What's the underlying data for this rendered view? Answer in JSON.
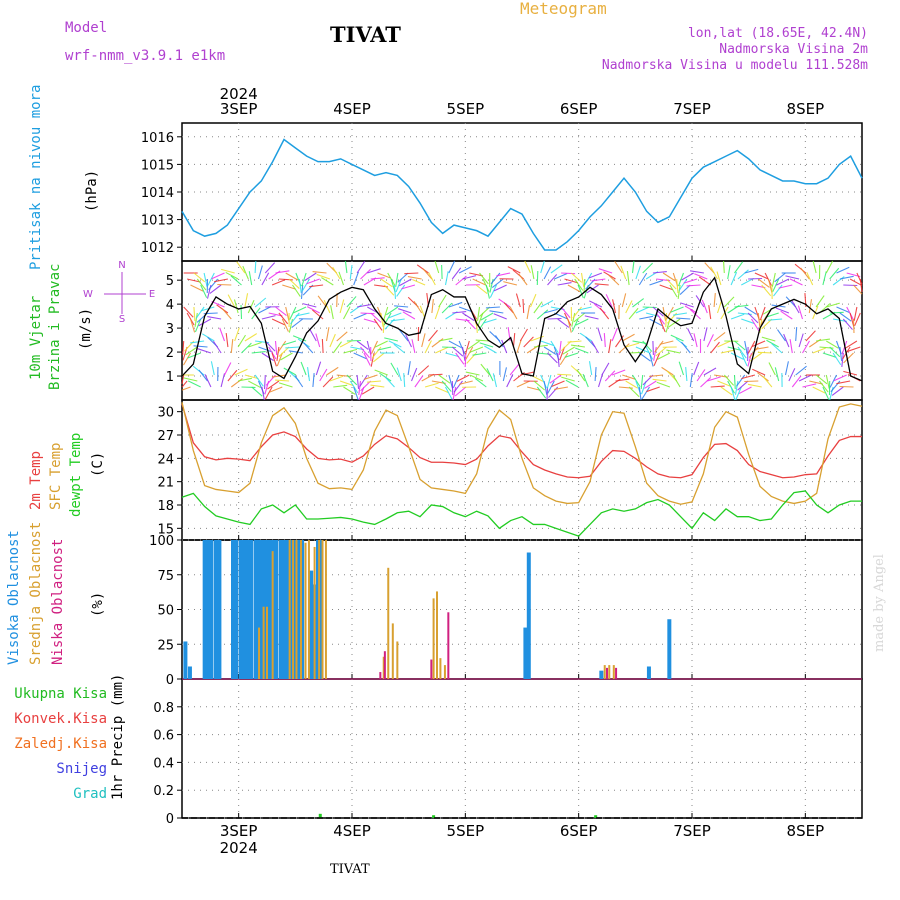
{
  "header": {
    "model_label": "Model",
    "model_name": "wrf-nmm_v3.9.1  e1km",
    "title": "TIVAT",
    "meteogram": "Meteogram",
    "coords": "lon,lat (18.65E, 42.4N)",
    "elevation": "Nadmorska Visina 2m",
    "model_elevation": "Nadmorska Visina u modelu 111.528m",
    "footer_title": "TIVAT",
    "watermark": "made by Angel"
  },
  "axis_labels": {
    "year_top": "2024",
    "year_bottom": "2024",
    "days": [
      "3SEP",
      "4SEP",
      "5SEP",
      "6SEP",
      "7SEP",
      "8SEP"
    ]
  },
  "panel_labels": {
    "pressure": [
      "Pritisak na nivou mora",
      "(hPa)"
    ],
    "wind": [
      "10m Vjetar",
      "Brzina i Pravac",
      "(m/s)"
    ],
    "wind_rose": [
      "N",
      "S",
      "W",
      "E"
    ],
    "temp": [
      "2m Temp",
      "SFC Temp",
      "dewpt Temp",
      "(C)"
    ],
    "cloud": [
      "Visoka Oblacnost",
      "Srednja Oblacnost",
      "Niska Oblacnost",
      "(%)"
    ],
    "precip": [
      "Ukupna Kisa",
      "Konvek.Kisa",
      "Zaledj.Kisa",
      "Snijeg",
      "Grad",
      "1hr Precip (mm)"
    ]
  },
  "colors": {
    "pressure": "#1e9ee0",
    "temp2m": "#e84040",
    "sfc": "#d8a030",
    "dewpt": "#22cc22",
    "cloud_high": "#2090e0",
    "cloud_mid": "#d8a030",
    "cloud_low": "#d02080",
    "title_orange": "#e8b040",
    "purple": "#b040d0"
  },
  "chart_data": [
    {
      "type": "line",
      "name": "pressure",
      "ylabel": "Pritisak na nivou mora (hPa)",
      "ylim": [
        1011.5,
        1016.5
      ],
      "yticks": [
        1012,
        1013,
        1014,
        1015,
        1016
      ],
      "xlim": [
        2.5,
        8.5
      ],
      "x": [
        2.5,
        2.6,
        2.7,
        2.8,
        2.9,
        3.0,
        3.1,
        3.2,
        3.3,
        3.4,
        3.5,
        3.6,
        3.7,
        3.8,
        3.9,
        4.0,
        4.1,
        4.2,
        4.3,
        4.4,
        4.5,
        4.6,
        4.7,
        4.8,
        4.9,
        5.0,
        5.1,
        5.2,
        5.3,
        5.4,
        5.5,
        5.6,
        5.7,
        5.8,
        5.9,
        6.0,
        6.1,
        6.2,
        6.3,
        6.4,
        6.5,
        6.6,
        6.7,
        6.8,
        6.9,
        7.0,
        7.1,
        7.2,
        7.3,
        7.4,
        7.5,
        7.6,
        7.7,
        7.8,
        7.9,
        8.0,
        8.1,
        8.2,
        8.3,
        8.4,
        8.5
      ],
      "values": [
        1013.3,
        1012.6,
        1012.4,
        1012.5,
        1012.8,
        1013.4,
        1014.0,
        1014.4,
        1015.1,
        1015.9,
        1015.6,
        1015.3,
        1015.1,
        1015.1,
        1015.2,
        1015.0,
        1014.8,
        1014.6,
        1014.7,
        1014.6,
        1014.2,
        1013.6,
        1012.9,
        1012.5,
        1012.8,
        1012.7,
        1012.6,
        1012.4,
        1012.9,
        1013.4,
        1013.2,
        1012.5,
        1011.9,
        1011.9,
        1012.2,
        1012.6,
        1013.1,
        1013.5,
        1014.0,
        1014.5,
        1014.0,
        1013.3,
        1012.9,
        1013.1,
        1013.8,
        1014.5,
        1014.9,
        1015.1,
        1015.3,
        1015.5,
        1015.2,
        1014.8,
        1014.6,
        1014.4,
        1014.4,
        1014.3,
        1014.3,
        1014.5,
        1015.0,
        1015.3,
        1014.5
      ],
      "grid": true
    },
    {
      "type": "line",
      "name": "wind",
      "ylabel": "10m Vjetar Brzina i Pravac (m/s)",
      "ylim": [
        0,
        5.8
      ],
      "yticks": [
        1,
        2,
        3,
        4,
        5
      ],
      "xlim": [
        2.5,
        8.5
      ],
      "x": [
        2.5,
        2.6,
        2.7,
        2.8,
        2.9,
        3.0,
        3.1,
        3.2,
        3.3,
        3.4,
        3.5,
        3.6,
        3.7,
        3.8,
        3.9,
        4.0,
        4.1,
        4.2,
        4.3,
        4.4,
        4.5,
        4.6,
        4.7,
        4.8,
        4.9,
        5.0,
        5.1,
        5.2,
        5.3,
        5.4,
        5.5,
        5.6,
        5.7,
        5.8,
        5.9,
        6.0,
        6.1,
        6.2,
        6.3,
        6.4,
        6.5,
        6.6,
        6.7,
        6.8,
        6.9,
        7.0,
        7.1,
        7.2,
        7.3,
        7.4,
        7.5,
        7.6,
        7.7,
        7.8,
        7.9,
        8.0,
        8.1,
        8.2,
        8.3,
        8.4,
        8.5
      ],
      "values": [
        1.0,
        1.5,
        3.5,
        4.3,
        4.0,
        3.8,
        3.9,
        3.2,
        1.2,
        0.9,
        1.8,
        2.8,
        3.3,
        4.2,
        4.5,
        4.7,
        4.6,
        3.8,
        3.2,
        3.0,
        2.7,
        2.8,
        4.4,
        4.6,
        4.3,
        4.3,
        3.2,
        2.5,
        2.2,
        2.6,
        1.1,
        1.0,
        3.4,
        3.6,
        4.1,
        4.3,
        4.7,
        4.4,
        3.8,
        2.3,
        1.6,
        2.3,
        3.8,
        3.4,
        3.1,
        3.2,
        4.5,
        5.1,
        3.5,
        1.5,
        1.1,
        3.0,
        3.8,
        4.0,
        4.2,
        4.0,
        3.6,
        3.8,
        3.4,
        1.0,
        0.8
      ],
      "grid": true
    },
    {
      "type": "line",
      "name": "temperature",
      "ylabel": "(C)",
      "ylim": [
        13.5,
        31.5
      ],
      "yticks": [
        15,
        18,
        21,
        24,
        27,
        30
      ],
      "xlim": [
        2.5,
        8.5
      ],
      "x": [
        2.5,
        2.6,
        2.7,
        2.8,
        2.9,
        3.0,
        3.1,
        3.2,
        3.3,
        3.4,
        3.5,
        3.6,
        3.7,
        3.8,
        3.9,
        4.0,
        4.1,
        4.2,
        4.3,
        4.4,
        4.5,
        4.6,
        4.7,
        4.8,
        4.9,
        5.0,
        5.1,
        5.2,
        5.3,
        5.4,
        5.5,
        5.6,
        5.7,
        5.8,
        5.9,
        6.0,
        6.1,
        6.2,
        6.3,
        6.4,
        6.5,
        6.6,
        6.7,
        6.8,
        6.9,
        7.0,
        7.1,
        7.2,
        7.3,
        7.4,
        7.5,
        7.6,
        7.7,
        7.8,
        7.9,
        8.0,
        8.1,
        8.2,
        8.3,
        8.4,
        8.5
      ],
      "series": [
        {
          "name": "2m Temp",
          "key": "temp2m",
          "values": [
            31.0,
            26.0,
            24.2,
            23.8,
            24.0,
            23.9,
            23.7,
            25.5,
            27.0,
            27.4,
            26.8,
            25.2,
            24.0,
            23.8,
            23.9,
            23.5,
            24.3,
            25.8,
            26.9,
            26.5,
            25.4,
            24.1,
            23.5,
            23.5,
            23.4,
            23.2,
            23.9,
            25.6,
            26.9,
            26.6,
            24.8,
            23.2,
            22.5,
            22.0,
            21.6,
            21.5,
            21.7,
            23.6,
            25.0,
            24.9,
            24.0,
            22.9,
            22.0,
            21.6,
            21.5,
            21.9,
            24.1,
            25.8,
            25.9,
            25.0,
            23.2,
            22.3,
            21.9,
            21.5,
            21.6,
            21.9,
            22.0,
            24.3,
            26.3,
            26.8,
            26.8
          ]
        },
        {
          "name": "SFC Temp",
          "key": "sfc",
          "values": [
            31.2,
            25.0,
            20.5,
            20.0,
            19.8,
            19.6,
            20.8,
            26.0,
            29.5,
            30.5,
            28.5,
            24.0,
            20.8,
            20.1,
            20.2,
            20.0,
            22.5,
            27.5,
            30.2,
            29.5,
            25.5,
            21.3,
            20.2,
            20.0,
            19.8,
            19.5,
            22.0,
            27.8,
            30.2,
            29.0,
            24.0,
            20.2,
            19.2,
            18.5,
            18.2,
            18.3,
            21.0,
            27.0,
            30.0,
            29.8,
            25.5,
            20.8,
            19.2,
            18.5,
            18.1,
            18.4,
            22.0,
            28.0,
            30.0,
            29.3,
            24.5,
            20.4,
            19.1,
            18.5,
            18.2,
            18.5,
            19.5,
            26.5,
            30.6,
            31.0,
            30.7
          ]
        },
        {
          "name": "dewpt Temp",
          "key": "dewpt",
          "values": [
            19.0,
            19.5,
            17.8,
            16.6,
            16.2,
            15.8,
            15.5,
            17.5,
            18.0,
            17.0,
            18.0,
            16.2,
            16.2,
            16.3,
            16.4,
            16.2,
            15.8,
            15.5,
            16.2,
            17.0,
            17.2,
            16.5,
            18.0,
            17.8,
            17.0,
            16.5,
            17.2,
            16.6,
            15.0,
            16.0,
            16.5,
            15.5,
            15.5,
            15.0,
            14.5,
            14.0,
            15.5,
            17.0,
            17.5,
            17.2,
            17.5,
            18.3,
            18.7,
            18.0,
            16.5,
            15.0,
            17.0,
            16.0,
            17.5,
            16.5,
            16.5,
            16.0,
            16.2,
            18.0,
            19.6,
            19.8,
            18.0,
            17.0,
            18.0,
            18.5,
            18.5
          ]
        }
      ],
      "grid": true
    },
    {
      "type": "bar",
      "name": "cloud",
      "ylabel": "(%)",
      "ylim": [
        0,
        100
      ],
      "yticks": [
        0,
        25,
        50,
        75,
        100
      ],
      "xlim": [
        2.5,
        8.5
      ],
      "series": [
        {
          "name": "Visoka Oblacnost",
          "key": "cloud_high",
          "x": [
            2.53,
            2.57,
            2.7,
            2.73,
            2.76,
            2.8,
            2.83,
            2.95,
            2.98,
            3.02,
            3.05,
            3.08,
            3.11,
            3.15,
            3.18,
            3.21,
            3.24,
            3.27,
            3.3,
            3.33,
            3.37,
            3.4,
            3.43,
            3.46,
            3.49,
            3.53,
            3.56,
            3.64,
            3.67,
            3.7,
            3.73,
            5.53,
            5.56,
            6.2,
            6.62,
            6.8
          ],
          "values": [
            27,
            9,
            100,
            100,
            100,
            100,
            100,
            100,
            100,
            100,
            100,
            100,
            100,
            100,
            100,
            100,
            100,
            100,
            100,
            100,
            100,
            100,
            100,
            100,
            100,
            100,
            100,
            78,
            68,
            100,
            100,
            37,
            91,
            6,
            9,
            43
          ]
        },
        {
          "name": "Srednja Oblacnost",
          "key": "cloud_mid",
          "x": [
            3.18,
            3.22,
            3.25,
            3.3,
            3.45,
            3.48,
            3.51,
            3.55,
            3.59,
            3.62,
            3.67,
            3.71,
            3.74,
            3.77,
            4.28,
            4.32,
            4.36,
            4.4,
            4.72,
            4.75,
            4.78,
            4.82,
            6.23,
            6.27,
            6.31
          ],
          "values": [
            37,
            52,
            52,
            92,
            100,
            100,
            100,
            100,
            98,
            100,
            95,
            100,
            100,
            100,
            16,
            80,
            40,
            27,
            58,
            63,
            15,
            10,
            10,
            10,
            10
          ]
        },
        {
          "name": "Niska Oblacnost",
          "key": "cloud_low",
          "x": [
            4.25,
            4.29,
            4.7,
            4.85,
            6.25,
            6.33
          ],
          "values": [
            5,
            20,
            14,
            48,
            8,
            8
          ]
        }
      ],
      "grid": true
    },
    {
      "type": "bar",
      "name": "precip",
      "ylabel": "1hr Precip (mm)",
      "ylim": [
        0,
        1.0
      ],
      "yticks": [
        0,
        0.2,
        0.4,
        0.6,
        0.8
      ],
      "xlim": [
        2.5,
        8.5
      ],
      "series": [
        {
          "name": "Ukupna Kisa",
          "key": "dewpt",
          "x": [
            3.72,
            4.72,
            6.15
          ],
          "values": [
            0.03,
            0.02,
            0.02
          ]
        }
      ],
      "grid": true
    }
  ]
}
